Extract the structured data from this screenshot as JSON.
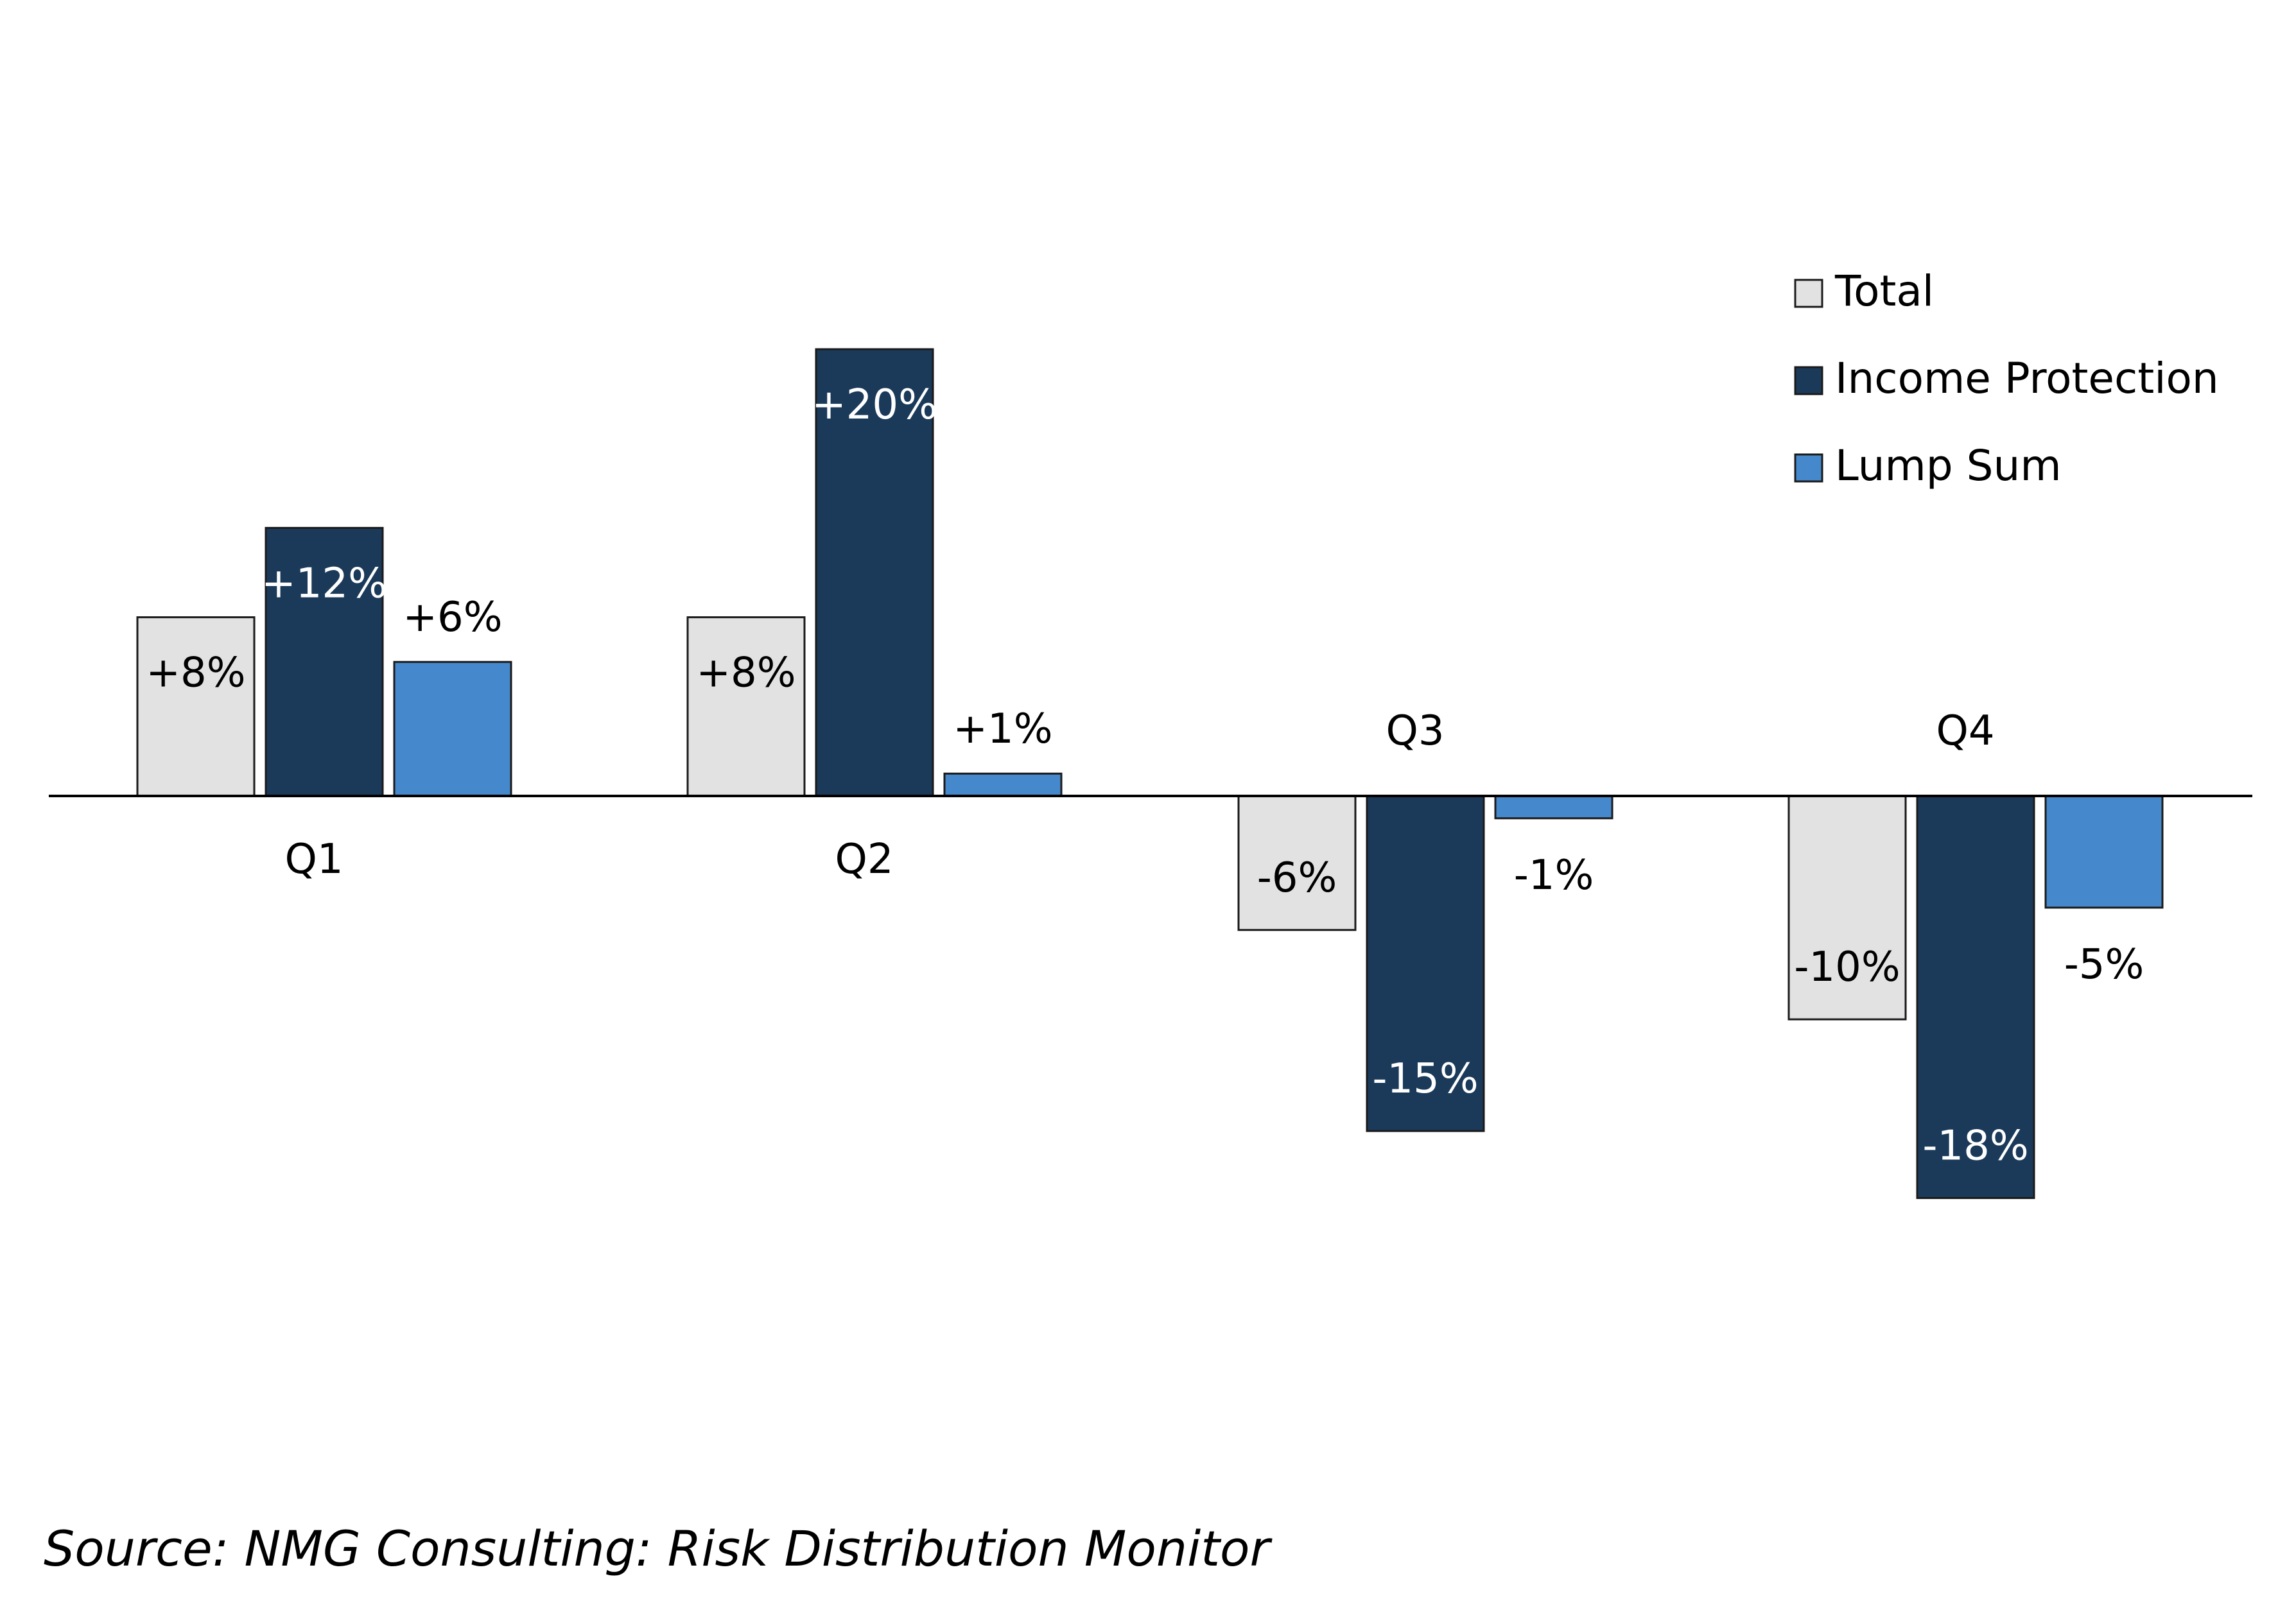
{
  "chart_data": {
    "type": "bar",
    "categories": [
      "Q1",
      "Q2",
      "Q3",
      "Q4"
    ],
    "series": [
      {
        "name": "Total",
        "values": [
          8,
          8,
          -6,
          -10
        ],
        "labels": [
          "+8%",
          "+8%",
          "-6%",
          "-10%"
        ],
        "color": "#e2e2e2",
        "label_color": "#000000"
      },
      {
        "name": "Income Protection",
        "values": [
          12,
          20,
          -15,
          -18
        ],
        "labels": [
          "+12%",
          "+20%",
          "-15%",
          "-18%"
        ],
        "color": "#1b3a5a",
        "label_color": "#ffffff"
      },
      {
        "name": "Lump Sum",
        "values": [
          6,
          1,
          -1,
          -5
        ],
        "labels": [
          "+6%",
          "+1%",
          "-1%",
          "-5%"
        ],
        "color": "#4589cc",
        "label_color": "#000000"
      }
    ],
    "ylim": [
      -22,
      26
    ],
    "grid": false,
    "legend": "top-right",
    "title": "",
    "xlabel": "",
    "ylabel": ""
  },
  "source": "Source: NMG Consulting: Risk Distribution Monitor"
}
